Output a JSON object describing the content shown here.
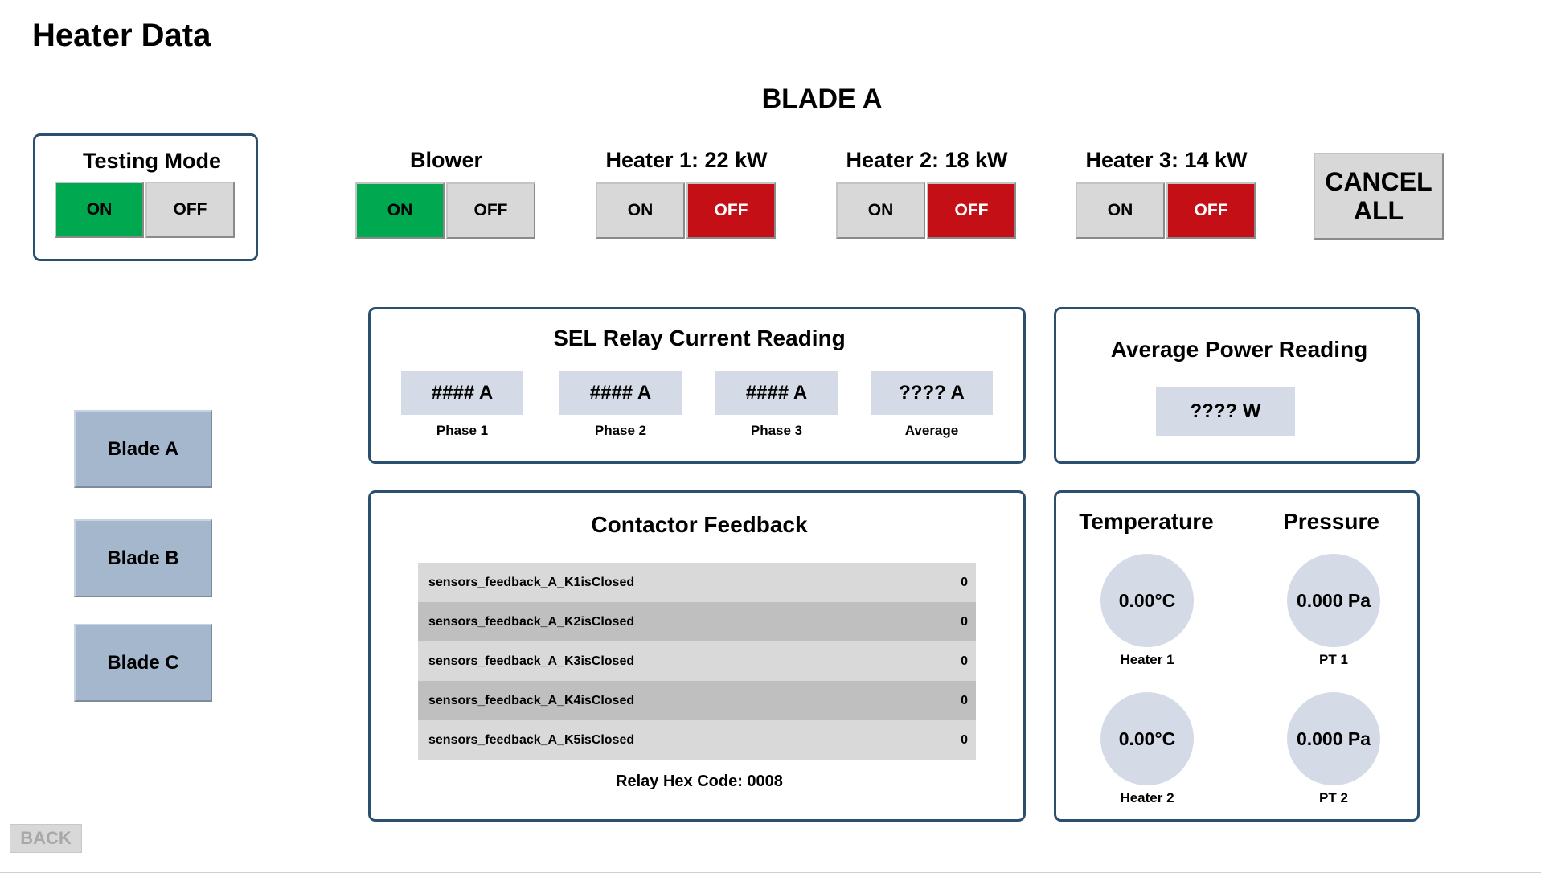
{
  "page": {
    "title": "Heater Data",
    "blade_title": "BLADE A"
  },
  "controls": {
    "testing_mode": {
      "label": "Testing Mode",
      "on": "ON",
      "off": "OFF",
      "state": "on"
    },
    "blower": {
      "label": "Blower",
      "on": "ON",
      "off": "OFF",
      "state": "on"
    },
    "heater1": {
      "label": "Heater 1: 22 kW",
      "on": "ON",
      "off": "OFF",
      "state": "off"
    },
    "heater2": {
      "label": "Heater 2: 18 kW",
      "on": "ON",
      "off": "OFF",
      "state": "off"
    },
    "heater3": {
      "label": "Heater 3: 14 kW",
      "on": "ON",
      "off": "OFF",
      "state": "off"
    },
    "cancel_all": "CANCEL\nALL"
  },
  "sidebar": {
    "blades": [
      "Blade A",
      "Blade B",
      "Blade C"
    ]
  },
  "sel_relay": {
    "title": "SEL Relay Current Reading",
    "readings": [
      {
        "value": "#### A",
        "label": "Phase 1"
      },
      {
        "value": "#### A",
        "label": "Phase 2"
      },
      {
        "value": "#### A",
        "label": "Phase 3"
      },
      {
        "value": "???? A",
        "label": "Average"
      }
    ]
  },
  "avg_power": {
    "title": "Average Power Reading",
    "value": "???? W"
  },
  "contactor": {
    "title": "Contactor Feedback",
    "rows": [
      {
        "name": "sensors_feedback_A_K1isClosed",
        "value": "0"
      },
      {
        "name": "sensors_feedback_A_K2isClosed",
        "value": "0"
      },
      {
        "name": "sensors_feedback_A_K3isClosed",
        "value": "0"
      },
      {
        "name": "sensors_feedback_A_K4isClosed",
        "value": "0"
      },
      {
        "name": "sensors_feedback_A_K5isClosed",
        "value": "0"
      }
    ],
    "hex_code": "Relay Hex Code: 0008"
  },
  "sensors": {
    "temperature_title": "Temperature",
    "pressure_title": "Pressure",
    "temperature": [
      {
        "value": "0.00°C",
        "label": "Heater 1"
      },
      {
        "value": "0.00°C",
        "label": "Heater 2"
      }
    ],
    "pressure": [
      {
        "value": "0.000 Pa",
        "label": "PT 1"
      },
      {
        "value": "0.000 Pa",
        "label": "PT 2"
      }
    ]
  },
  "footer": {
    "back": "BACK"
  },
  "colors": {
    "on_active": "#00a84f",
    "off_active": "#c40f16",
    "panel_border": "#2b4f6e",
    "readout_bg": "#d4dbe6"
  }
}
